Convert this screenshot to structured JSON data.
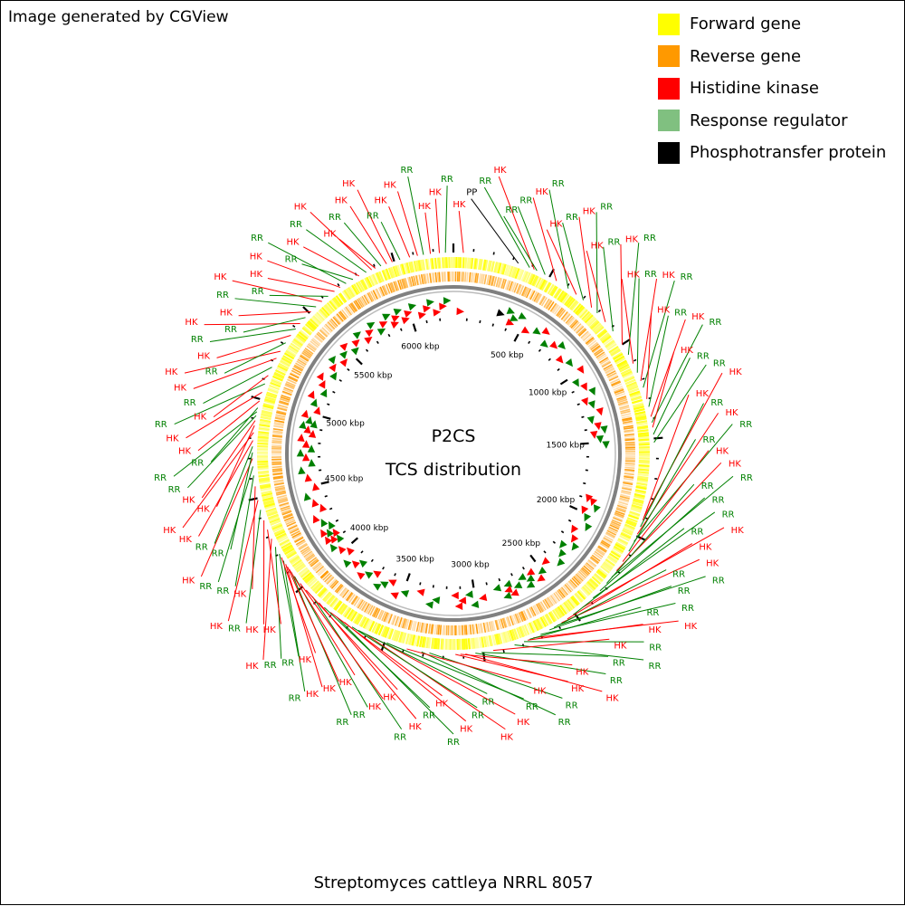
{
  "header": {
    "credit": "Image generated by CGView"
  },
  "legend": {
    "items": [
      {
        "label": "Forward gene",
        "color": "#ffff00"
      },
      {
        "label": "Reverse gene",
        "color": "#ff9900"
      },
      {
        "label": "Histidine kinase",
        "color": "#ff0000"
      },
      {
        "label": "Response regulator",
        "color": "#80c080"
      },
      {
        "label": "Phosphotransfer protein",
        "color": "#000000"
      }
    ]
  },
  "center": {
    "line1": "P2CS",
    "line2": "TCS distribution"
  },
  "footer": {
    "organism": "Streptomyces cattleya NRRL 8057"
  },
  "map": {
    "genome_length_kbp": 6300,
    "ruler_labels": [
      "500 kbp",
      "1000 kbp",
      "1500 kbp",
      "2000 kbp",
      "2500 kbp",
      "3000 kbp",
      "3500 kbp",
      "4000 kbp",
      "4500 kbp",
      "5000 kbp",
      "5500 kbp",
      "6000 kbp"
    ],
    "colors": {
      "forward": "#ffff00",
      "reverse": "#ff9900",
      "hk": "#ff0000",
      "rr": "#008000",
      "pp": "#000000",
      "backbone": "#808080"
    },
    "features": [
      {
        "type": "HK",
        "pos": 50
      },
      {
        "type": "PP",
        "pos": 330
      },
      {
        "type": "RR",
        "pos": 390
      },
      {
        "type": "HK",
        "pos": 415
      },
      {
        "type": "RR",
        "pos": 430
      },
      {
        "type": "RR",
        "pos": 475
      },
      {
        "type": "HK",
        "pos": 540
      },
      {
        "type": "RR",
        "pos": 610
      },
      {
        "type": "HK",
        "pos": 660
      },
      {
        "type": "RR",
        "pos": 705
      },
      {
        "type": "HK",
        "pos": 760
      },
      {
        "type": "RR",
        "pos": 800
      },
      {
        "type": "HK",
        "pos": 860
      },
      {
        "type": "RR",
        "pos": 920
      },
      {
        "type": "HK",
        "pos": 1000
      },
      {
        "type": "RR",
        "pos": 1060
      },
      {
        "type": "HK",
        "pos": 1110
      },
      {
        "type": "RR",
        "pos": 1160
      },
      {
        "type": "HK",
        "pos": 1205
      },
      {
        "type": "RR",
        "pos": 1240
      },
      {
        "type": "HK",
        "pos": 1300
      },
      {
        "type": "RR",
        "pos": 1340
      },
      {
        "type": "HK",
        "pos": 1390
      },
      {
        "type": "RR",
        "pos": 1420
      },
      {
        "type": "HK",
        "pos": 1445
      },
      {
        "type": "RR",
        "pos": 1480
      },
      {
        "type": "RR",
        "pos": 1520
      },
      {
        "type": "HK",
        "pos": 1900
      },
      {
        "type": "HK",
        "pos": 1915
      },
      {
        "type": "RR",
        "pos": 1950
      },
      {
        "type": "HK",
        "pos": 1990
      },
      {
        "type": "RR",
        "pos": 2030
      },
      {
        "type": "RR",
        "pos": 2085
      },
      {
        "type": "HK",
        "pos": 2145
      },
      {
        "type": "HK",
        "pos": 2200
      },
      {
        "type": "RR",
        "pos": 2240
      },
      {
        "type": "RR",
        "pos": 2280
      },
      {
        "type": "RR",
        "pos": 2330
      },
      {
        "type": "RR",
        "pos": 2380
      },
      {
        "type": "HK",
        "pos": 2450
      },
      {
        "type": "RR",
        "pos": 2510
      },
      {
        "type": "HK",
        "pos": 2545
      },
      {
        "type": "HK",
        "pos": 2580
      },
      {
        "type": "RR",
        "pos": 2605
      },
      {
        "type": "RR",
        "pos": 2625
      },
      {
        "type": "RR",
        "pos": 2650
      },
      {
        "type": "RR",
        "pos": 2700
      },
      {
        "type": "HK",
        "pos": 2740
      },
      {
        "type": "RR",
        "pos": 2760
      },
      {
        "type": "HK",
        "pos": 2770
      },
      {
        "type": "RR",
        "pos": 2790
      },
      {
        "type": "RR",
        "pos": 2840
      },
      {
        "type": "HK",
        "pos": 2950
      },
      {
        "type": "RR",
        "pos": 3010
      },
      {
        "type": "RR",
        "pos": 3040
      },
      {
        "type": "HK",
        "pos": 3090
      },
      {
        "type": "HK",
        "pos": 3115
      },
      {
        "type": "HK",
        "pos": 3140
      },
      {
        "type": "RR",
        "pos": 3270
      },
      {
        "type": "RR",
        "pos": 3310
      },
      {
        "type": "HK",
        "pos": 3385
      },
      {
        "type": "RR",
        "pos": 3490
      },
      {
        "type": "HK",
        "pos": 3550
      },
      {
        "type": "HK",
        "pos": 3600
      },
      {
        "type": "RR",
        "pos": 3645
      },
      {
        "type": "RR",
        "pos": 3680
      },
      {
        "type": "HK",
        "pos": 3725
      },
      {
        "type": "RR",
        "pos": 3770
      },
      {
        "type": "HK",
        "pos": 3810
      },
      {
        "type": "RR",
        "pos": 3850
      },
      {
        "type": "HK",
        "pos": 3885
      },
      {
        "type": "RR",
        "pos": 3930
      },
      {
        "type": "HK",
        "pos": 3975
      },
      {
        "type": "HK",
        "pos": 4020
      },
      {
        "type": "RR",
        "pos": 4065
      },
      {
        "type": "RR",
        "pos": 4090
      },
      {
        "type": "HK",
        "pos": 4110
      },
      {
        "type": "HK",
        "pos": 4125
      },
      {
        "type": "HK",
        "pos": 4140
      },
      {
        "type": "RR",
        "pos": 4160
      },
      {
        "type": "HK",
        "pos": 4180
      },
      {
        "type": "RR",
        "pos": 4200
      },
      {
        "type": "RR",
        "pos": 4240
      },
      {
        "type": "HK",
        "pos": 4285
      },
      {
        "type": "HK",
        "pos": 4335
      },
      {
        "type": "HK",
        "pos": 4385
      },
      {
        "type": "RR",
        "pos": 4440
      },
      {
        "type": "HK",
        "pos": 4490
      },
      {
        "type": "HK",
        "pos": 4560
      },
      {
        "type": "RR",
        "pos": 4615
      },
      {
        "type": "RR",
        "pos": 4660
      },
      {
        "type": "HK",
        "pos": 4700
      },
      {
        "type": "RR",
        "pos": 4730
      },
      {
        "type": "RR",
        "pos": 4760
      },
      {
        "type": "HK",
        "pos": 4790
      },
      {
        "type": "HK",
        "pos": 4830
      },
      {
        "type": "HK",
        "pos": 4865
      },
      {
        "type": "HK",
        "pos": 4890
      },
      {
        "type": "RR",
        "pos": 4915
      },
      {
        "type": "RR",
        "pos": 4935
      },
      {
        "type": "RR",
        "pos": 4955
      },
      {
        "type": "HK",
        "pos": 4990
      },
      {
        "type": "HK",
        "pos": 5035
      },
      {
        "type": "RR",
        "pos": 5080
      },
      {
        "type": "HK",
        "pos": 5125
      },
      {
        "type": "RR",
        "pos": 5170
      },
      {
        "type": "HK",
        "pos": 5220
      },
      {
        "type": "HK",
        "pos": 5260
      },
      {
        "type": "RR",
        "pos": 5310
      },
      {
        "type": "HK",
        "pos": 5355
      },
      {
        "type": "RR",
        "pos": 5395
      },
      {
        "type": "HK",
        "pos": 5430
      },
      {
        "type": "RR",
        "pos": 5470
      },
      {
        "type": "HK",
        "pos": 5510
      },
      {
        "type": "RR",
        "pos": 5545
      },
      {
        "type": "HK",
        "pos": 5585
      },
      {
        "type": "RR",
        "pos": 5625
      },
      {
        "type": "HK",
        "pos": 5665
      },
      {
        "type": "HK",
        "pos": 5700
      },
      {
        "type": "RR",
        "pos": 5735
      },
      {
        "type": "RR",
        "pos": 5775
      },
      {
        "type": "HK",
        "pos": 5810
      },
      {
        "type": "RR",
        "pos": 5850
      },
      {
        "type": "HK",
        "pos": 5880
      },
      {
        "type": "HK",
        "pos": 5900
      },
      {
        "type": "RR",
        "pos": 5930
      },
      {
        "type": "HK",
        "pos": 5960
      },
      {
        "type": "HK",
        "pos": 5990
      },
      {
        "type": "RR",
        "pos": 6030
      },
      {
        "type": "HK",
        "pos": 6080
      },
      {
        "type": "HK",
        "pos": 6120
      },
      {
        "type": "RR",
        "pos": 6150
      },
      {
        "type": "HK",
        "pos": 6185
      },
      {
        "type": "HK",
        "pos": 6230
      },
      {
        "type": "RR",
        "pos": 6260
      }
    ]
  }
}
